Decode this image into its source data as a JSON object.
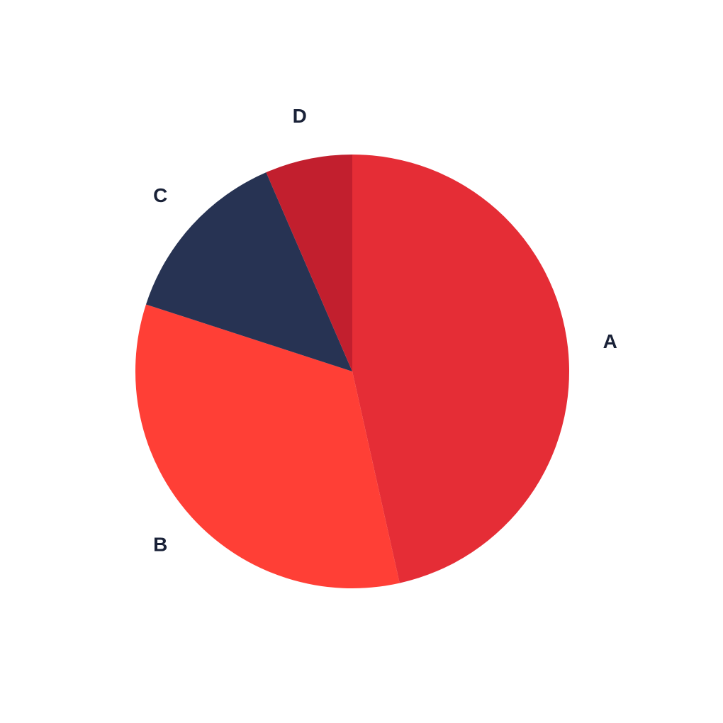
{
  "chart_data": {
    "type": "pie",
    "title": "",
    "categories": [
      "A",
      "B",
      "C",
      "D"
    ],
    "values": [
      46.5,
      33.5,
      13.5,
      6.5
    ],
    "colors": [
      "#e52d36",
      "#ff3f36",
      "#273353",
      "#c21f2e"
    ],
    "label_color": "#1a2238",
    "start_angle_deg": 0,
    "direction": "clockwise"
  }
}
